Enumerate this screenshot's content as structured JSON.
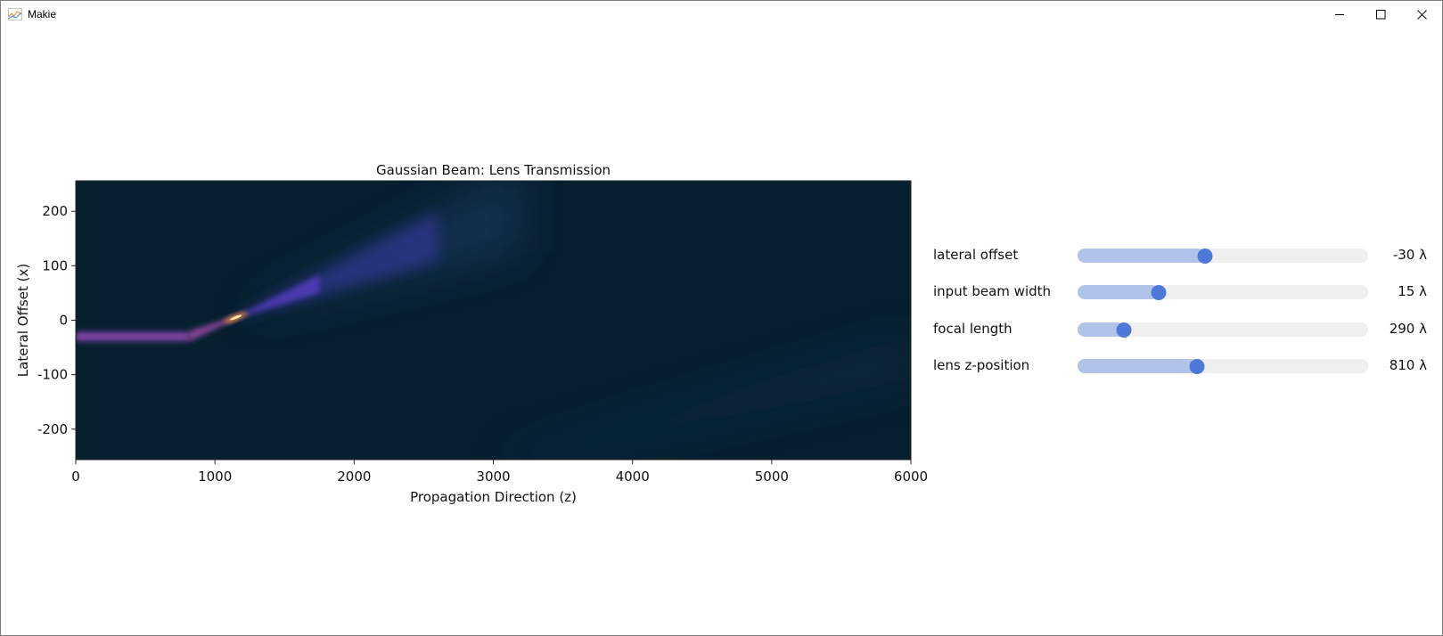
{
  "window": {
    "title": "Makie",
    "icon": "makie-chart-icon",
    "controls": [
      "minimize-icon",
      "maximize-icon",
      "close-icon"
    ]
  },
  "chart_data": {
    "type": "heatmap",
    "title": "Gaussian Beam: Lens Transmission",
    "xlabel": "Propagation Direction (z)",
    "ylabel": "Lateral Offset (x)",
    "xlim": [
      0,
      6000
    ],
    "ylim": [
      -256,
      256
    ],
    "xticks": [
      "0",
      "1000",
      "2000",
      "3000",
      "4000",
      "5000",
      "6000"
    ],
    "xtick_values": [
      0,
      1000,
      2000,
      3000,
      4000,
      5000,
      6000
    ],
    "yticks": [
      "200",
      "100",
      "0",
      "-100",
      "-200"
    ],
    "ytick_values": [
      200,
      100,
      0,
      -100,
      -200
    ],
    "colormap": "inferno",
    "background_color": "#07202f",
    "beam": {
      "input_center_x": -30,
      "lens_z": 810,
      "focus_z": 1150,
      "focus_x": 5
    }
  },
  "sliders": [
    {
      "label": "lateral offset",
      "value": "-30 λ",
      "fraction": 0.44
    },
    {
      "label": "input beam width",
      "value": "15 λ",
      "fraction": 0.28
    },
    {
      "label": "focal length",
      "value": "290 λ",
      "fraction": 0.16
    },
    {
      "label": "lens z-position",
      "value": "810 λ",
      "fraction": 0.41
    }
  ],
  "colors": {
    "slider_track": "#efefef",
    "slider_fill": "#b2c3ea",
    "slider_knob": "#4f79d8"
  }
}
